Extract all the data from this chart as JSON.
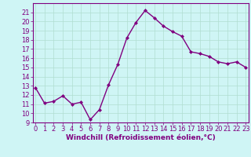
{
  "x": [
    0,
    1,
    2,
    3,
    4,
    5,
    6,
    7,
    8,
    9,
    10,
    11,
    12,
    13,
    14,
    15,
    16,
    17,
    18,
    19,
    20,
    21,
    22,
    23
  ],
  "y": [
    12.8,
    11.1,
    11.3,
    11.9,
    11.0,
    11.2,
    9.3,
    10.4,
    13.1,
    15.3,
    18.2,
    19.9,
    21.2,
    20.4,
    19.5,
    18.9,
    18.4,
    16.7,
    16.5,
    16.2,
    15.6,
    15.4,
    15.6,
    15.0
  ],
  "line_color": "#800080",
  "marker": "D",
  "marker_size": 2,
  "background_color": "#cff5f5",
  "grid_color": "#b0ddd0",
  "xlabel": "Windchill (Refroidissement éolien,°C)",
  "xlabel_fontsize": 6.5,
  "ylim": [
    9,
    22
  ],
  "xlim": [
    -0.3,
    23.3
  ],
  "yticks": [
    9,
    10,
    11,
    12,
    13,
    14,
    15,
    16,
    17,
    18,
    19,
    20,
    21
  ],
  "xticks": [
    0,
    1,
    2,
    3,
    4,
    5,
    6,
    7,
    8,
    9,
    10,
    11,
    12,
    13,
    14,
    15,
    16,
    17,
    18,
    19,
    20,
    21,
    22,
    23
  ],
  "tick_fontsize": 6,
  "tick_color": "#800080",
  "spine_color": "#800080",
  "line_width": 1.0
}
